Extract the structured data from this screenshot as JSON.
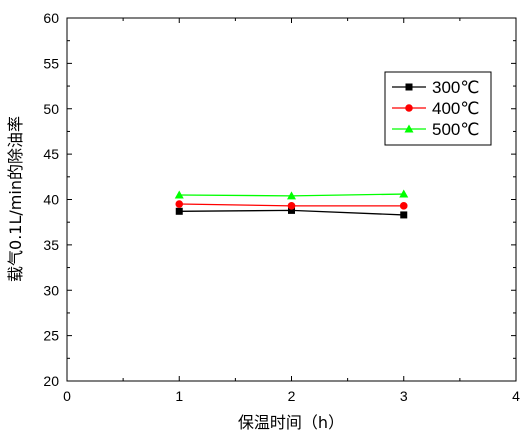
{
  "chart_data": {
    "type": "line",
    "title": "",
    "xlabel": "保温时间（h）",
    "ylabel": "载气0.1L/min的除油率",
    "xlim": [
      0,
      4
    ],
    "ylim": [
      20,
      60
    ],
    "xticks": [
      "0",
      "1",
      "2",
      "3",
      "4"
    ],
    "yticks": [
      "20",
      "25",
      "30",
      "35",
      "40",
      "45",
      "50",
      "55",
      "60"
    ],
    "x": [
      1,
      2,
      3
    ],
    "series": [
      {
        "name": "300℃",
        "values": [
          38.7,
          38.8,
          38.3
        ],
        "color": "#000000",
        "marker": "square"
      },
      {
        "name": "400℃",
        "values": [
          39.5,
          39.3,
          39.3
        ],
        "color": "#ff0000",
        "marker": "circle"
      },
      {
        "name": "500℃",
        "values": [
          40.5,
          40.4,
          40.6
        ],
        "color": "#00ff00",
        "marker": "triangle"
      }
    ],
    "grid": false,
    "legend_position": "top-right"
  }
}
